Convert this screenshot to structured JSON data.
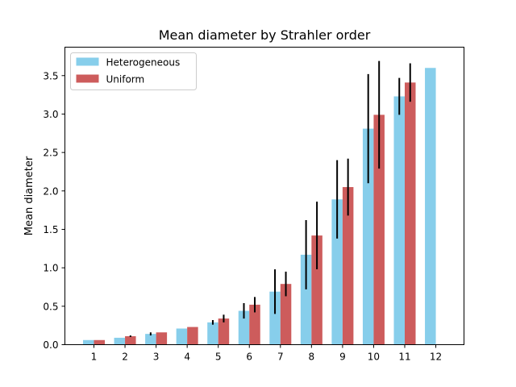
{
  "chart_data": {
    "type": "bar",
    "title": "Mean diameter by Strahler order",
    "xlabel": "",
    "ylabel": "Mean diameter",
    "categories": [
      "1",
      "2",
      "3",
      "4",
      "5",
      "6",
      "7",
      "8",
      "9",
      "10",
      "11",
      "12"
    ],
    "ylim": [
      0,
      3.87
    ],
    "yticks": [
      0.0,
      0.5,
      1.0,
      1.5,
      2.0,
      2.5,
      3.0,
      3.5
    ],
    "ytick_labels": [
      "0.0",
      "0.5",
      "1.0",
      "1.5",
      "2.0",
      "2.5",
      "3.0",
      "3.5"
    ],
    "legend_position": "top-left",
    "series": [
      {
        "name": "Heterogeneous",
        "color": "#87ceeb",
        "values": [
          0.06,
          0.09,
          0.14,
          0.21,
          0.29,
          0.44,
          0.69,
          1.17,
          1.89,
          2.81,
          3.23,
          3.6
        ],
        "errors": [
          0.0,
          0.0,
          0.02,
          0.0,
          0.03,
          0.1,
          0.29,
          0.45,
          0.51,
          0.71,
          0.24,
          0.0
        ]
      },
      {
        "name": "Uniform",
        "color": "#cd5c5c",
        "values": [
          0.06,
          0.11,
          0.16,
          0.23,
          0.34,
          0.52,
          0.79,
          1.42,
          2.05,
          2.99,
          3.41,
          null
        ],
        "errors": [
          0.0,
          0.01,
          0.0,
          0.0,
          0.05,
          0.1,
          0.16,
          0.44,
          0.37,
          0.7,
          0.25,
          null
        ]
      }
    ]
  }
}
